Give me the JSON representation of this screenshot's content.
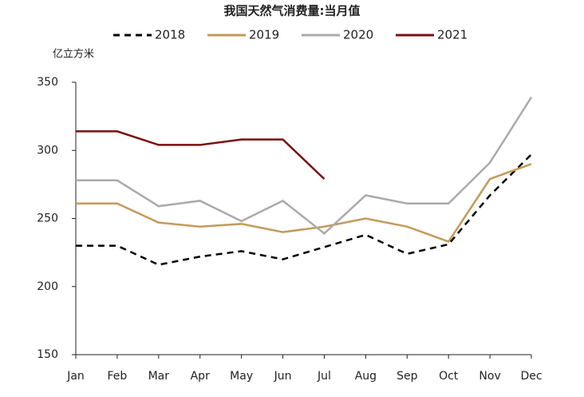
{
  "chart_data": {
    "type": "line",
    "title": "我国天然气消费量:当月值",
    "y_label": "亿立方米",
    "categories": [
      "Jan",
      "Feb",
      "Mar",
      "Apr",
      "May",
      "Jun",
      "Jul",
      "Aug",
      "Sep",
      "Oct",
      "Nov",
      "Dec"
    ],
    "series": [
      {
        "name": "2018",
        "color": "#000000",
        "dashed": true,
        "values": [
          230,
          230,
          216,
          222,
          226,
          220,
          229,
          238,
          224,
          231,
          267,
          297
        ]
      },
      {
        "name": "2019",
        "color": "#c49a5a",
        "values": [
          261,
          261,
          247,
          244,
          246,
          240,
          244,
          250,
          244,
          233,
          279,
          290
        ]
      },
      {
        "name": "2020",
        "color": "#aaaaaa",
        "values": [
          278,
          278,
          259,
          263,
          248,
          263,
          239,
          267,
          261,
          261,
          291,
          339
        ]
      },
      {
        "name": "2021",
        "color": "#7b0f0f",
        "values": [
          314,
          314,
          304,
          304,
          308,
          308,
          279,
          null,
          null,
          null,
          null,
          null
        ]
      }
    ],
    "ylim": [
      150,
      350
    ],
    "yticks": [
      150,
      200,
      250,
      300,
      350
    ],
    "grid": false,
    "legend": "top"
  }
}
